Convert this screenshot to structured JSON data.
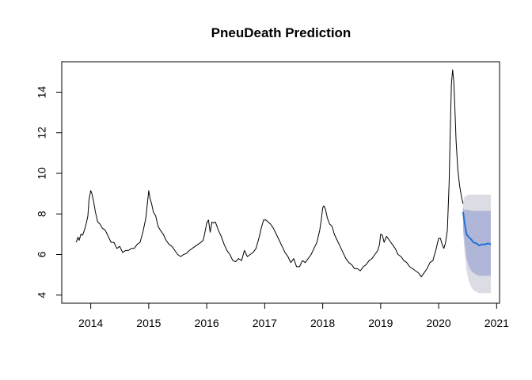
{
  "chart_data": {
    "type": "line",
    "title": "PneuDeath Prediction",
    "xlabel": "",
    "ylabel": "",
    "xlim": [
      2013.5,
      2021.05
    ],
    "ylim": [
      3.6,
      15.5
    ],
    "x_ticks": [
      2014,
      2015,
      2016,
      2017,
      2018,
      2019,
      2020,
      2021
    ],
    "y_ticks": [
      4,
      6,
      8,
      10,
      12,
      14
    ],
    "grid": false,
    "legend": "none",
    "colors": {
      "observed": "#000000",
      "forecast": "#2171d6",
      "band_95": "#dcdce4",
      "band_80": "#b0b6d8"
    },
    "observed": {
      "x": [
        2013.75,
        2013.78,
        2013.8,
        2013.83,
        2013.86,
        2013.89,
        2013.92,
        2013.95,
        2013.97,
        2014.0,
        2014.02,
        2014.05,
        2014.08,
        2014.12,
        2014.16,
        2014.2,
        2014.25,
        2014.3,
        2014.35,
        2014.4,
        2014.45,
        2014.5,
        2014.55,
        2014.6,
        2014.65,
        2014.7,
        2014.75,
        2014.8,
        2014.85,
        2014.9,
        2014.95,
        2014.98,
        2015.0,
        2015.02,
        2015.05,
        2015.08,
        2015.12,
        2015.16,
        2015.2,
        2015.25,
        2015.3,
        2015.35,
        2015.4,
        2015.45,
        2015.5,
        2015.55,
        2015.6,
        2015.65,
        2015.7,
        2015.75,
        2015.8,
        2015.85,
        2015.9,
        2015.94,
        2015.97,
        2016.0,
        2016.03,
        2016.06,
        2016.09,
        2016.12,
        2016.15,
        2016.2,
        2016.25,
        2016.3,
        2016.35,
        2016.4,
        2016.45,
        2016.5,
        2016.55,
        2016.6,
        2016.65,
        2016.7,
        2016.75,
        2016.8,
        2016.85,
        2016.9,
        2016.94,
        2016.98,
        2017.02,
        2017.06,
        2017.1,
        2017.15,
        2017.2,
        2017.25,
        2017.3,
        2017.35,
        2017.4,
        2017.45,
        2017.5,
        2017.55,
        2017.6,
        2017.65,
        2017.7,
        2017.75,
        2017.8,
        2017.85,
        2017.9,
        2017.95,
        2017.98,
        2018.0,
        2018.02,
        2018.05,
        2018.08,
        2018.12,
        2018.16,
        2018.2,
        2018.25,
        2018.3,
        2018.35,
        2018.4,
        2018.45,
        2018.5,
        2018.55,
        2018.6,
        2018.65,
        2018.7,
        2018.75,
        2018.8,
        2018.85,
        2018.9,
        2018.95,
        2018.98,
        2019.0,
        2019.03,
        2019.06,
        2019.1,
        2019.15,
        2019.2,
        2019.25,
        2019.3,
        2019.35,
        2019.4,
        2019.45,
        2019.5,
        2019.55,
        2019.6,
        2019.65,
        2019.7,
        2019.75,
        2019.8,
        2019.85,
        2019.9,
        2019.95,
        2020.0,
        2020.03,
        2020.06,
        2020.09,
        2020.12,
        2020.15,
        2020.18,
        2020.2,
        2020.22,
        2020.24,
        2020.26,
        2020.28,
        2020.3,
        2020.33,
        2020.36,
        2020.39,
        2020.42
      ],
      "y": [
        6.6,
        6.85,
        6.7,
        7.0,
        6.95,
        7.2,
        7.5,
        7.9,
        8.7,
        9.15,
        9.0,
        8.6,
        8.1,
        7.6,
        7.5,
        7.3,
        7.2,
        6.9,
        6.6,
        6.6,
        6.3,
        6.4,
        6.1,
        6.2,
        6.2,
        6.3,
        6.3,
        6.5,
        6.6,
        7.1,
        7.8,
        8.6,
        9.15,
        8.8,
        8.5,
        8.1,
        7.9,
        7.4,
        7.2,
        7.0,
        6.7,
        6.5,
        6.4,
        6.2,
        6.0,
        5.9,
        6.0,
        6.05,
        6.2,
        6.3,
        6.4,
        6.5,
        6.6,
        6.7,
        7.1,
        7.55,
        7.7,
        7.1,
        7.6,
        7.55,
        7.6,
        7.2,
        6.9,
        6.5,
        6.2,
        6.0,
        5.7,
        5.65,
        5.8,
        5.7,
        6.2,
        5.9,
        6.0,
        6.1,
        6.3,
        6.8,
        7.3,
        7.7,
        7.7,
        7.6,
        7.5,
        7.3,
        7.0,
        6.7,
        6.4,
        6.1,
        5.9,
        5.6,
        5.8,
        5.4,
        5.4,
        5.7,
        5.6,
        5.8,
        6.0,
        6.3,
        6.6,
        7.2,
        7.8,
        8.3,
        8.4,
        8.2,
        7.8,
        7.5,
        7.4,
        7.0,
        6.7,
        6.4,
        6.1,
        5.8,
        5.6,
        5.5,
        5.3,
        5.3,
        5.2,
        5.4,
        5.5,
        5.7,
        5.8,
        6.0,
        6.2,
        6.5,
        7.0,
        6.95,
        6.6,
        6.9,
        6.7,
        6.5,
        6.3,
        6.0,
        5.9,
        5.7,
        5.6,
        5.4,
        5.3,
        5.2,
        5.1,
        4.9,
        5.1,
        5.3,
        5.6,
        5.7,
        6.2,
        6.8,
        6.8,
        6.5,
        6.3,
        6.6,
        7.2,
        9.5,
        12.0,
        14.4,
        15.1,
        14.6,
        13.2,
        11.6,
        10.2,
        9.4,
        8.9,
        8.5
      ]
    },
    "forecast": {
      "x": [
        2020.42,
        2020.45,
        2020.48,
        2020.52,
        2020.56,
        2020.6,
        2020.65,
        2020.7,
        2020.75,
        2020.8,
        2020.85,
        2020.9
      ],
      "mean": [
        8.1,
        7.5,
        7.0,
        6.85,
        6.75,
        6.6,
        6.55,
        6.45,
        6.5,
        6.5,
        6.55,
        6.5
      ],
      "lo80": [
        7.3,
        6.5,
        5.8,
        5.4,
        5.2,
        5.1,
        5.0,
        4.95,
        4.95,
        4.95,
        4.95,
        4.95
      ],
      "hi80": [
        8.3,
        8.2,
        8.2,
        8.2,
        8.15,
        8.15,
        8.15,
        8.15,
        8.15,
        8.15,
        8.15,
        8.15
      ],
      "lo95": [
        7.1,
        6.0,
        5.2,
        4.7,
        4.4,
        4.25,
        4.15,
        4.1,
        4.1,
        4.1,
        4.1,
        4.1
      ],
      "hi95": [
        8.6,
        8.85,
        8.9,
        8.95,
        8.95,
        8.95,
        8.95,
        8.95,
        8.95,
        8.95,
        8.95,
        8.95
      ]
    }
  }
}
